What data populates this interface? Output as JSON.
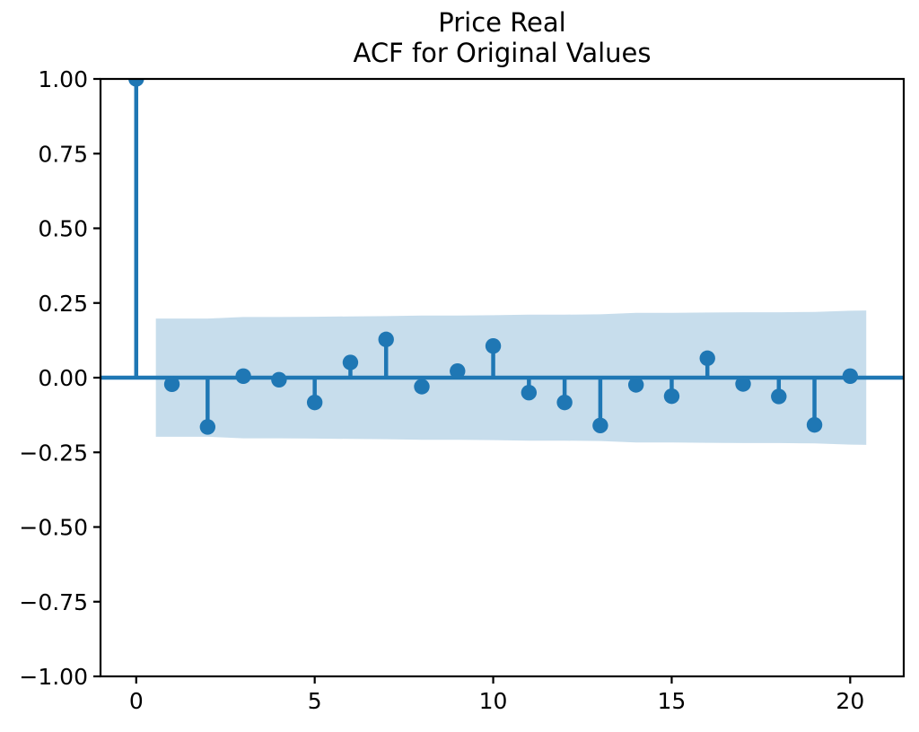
{
  "chart_data": {
    "type": "stem",
    "chart_kind": "autocorrelation",
    "title": "Price Real",
    "subtitle": "ACF for Original Values",
    "xlabel": "",
    "ylabel": "",
    "grid": false,
    "legend_position": "none",
    "xlim": [
      -1.0,
      21.5
    ],
    "ylim": [
      -1.0,
      1.0
    ],
    "xticks": {
      "values": [
        0,
        5,
        10,
        15,
        20
      ],
      "labels": [
        "0",
        "5",
        "10",
        "15",
        "20"
      ]
    },
    "yticks": {
      "values": [
        1.0,
        0.75,
        0.5,
        0.25,
        0.0,
        -0.25,
        -0.5,
        -0.75,
        -1.0
      ],
      "labels": [
        "1.00",
        "0.75",
        "0.50",
        "0.25",
        "0.00",
        "−0.25",
        "−0.50",
        "−0.75",
        "−1.00"
      ]
    },
    "lags": [
      0,
      1,
      2,
      3,
      4,
      5,
      6,
      7,
      8,
      9,
      10,
      11,
      12,
      13,
      14,
      15,
      16,
      17,
      18,
      19,
      20
    ],
    "acf": [
      1.0,
      -0.022,
      -0.165,
      0.005,
      -0.007,
      -0.083,
      0.051,
      0.128,
      -0.03,
      0.022,
      0.106,
      -0.05,
      -0.083,
      -0.16,
      -0.024,
      -0.062,
      0.065,
      -0.021,
      -0.063,
      -0.158,
      0.005
    ],
    "confidence_band": {
      "x": [
        0.55,
        1,
        2,
        3,
        4,
        5,
        6,
        7,
        8,
        9,
        10,
        11,
        12,
        13,
        14,
        15,
        16,
        17,
        18,
        19,
        20,
        20.45
      ],
      "upper": [
        0.198,
        0.198,
        0.198,
        0.203,
        0.203,
        0.204,
        0.205,
        0.206,
        0.208,
        0.208,
        0.209,
        0.211,
        0.211,
        0.212,
        0.217,
        0.217,
        0.218,
        0.219,
        0.219,
        0.22,
        0.224,
        0.225
      ],
      "lower": [
        -0.198,
        -0.198,
        -0.198,
        -0.203,
        -0.203,
        -0.204,
        -0.205,
        -0.206,
        -0.208,
        -0.208,
        -0.209,
        -0.211,
        -0.211,
        -0.212,
        -0.217,
        -0.217,
        -0.218,
        -0.219,
        -0.219,
        -0.22,
        -0.224,
        -0.225
      ]
    },
    "colors": {
      "stem": "#1f77b4",
      "marker": "#1f77b4",
      "zero_line": "#1f77b4",
      "band": "rgba(31,119,180,0.25)",
      "axis": "#000000",
      "text": "#000000",
      "background": "#ffffff"
    }
  }
}
